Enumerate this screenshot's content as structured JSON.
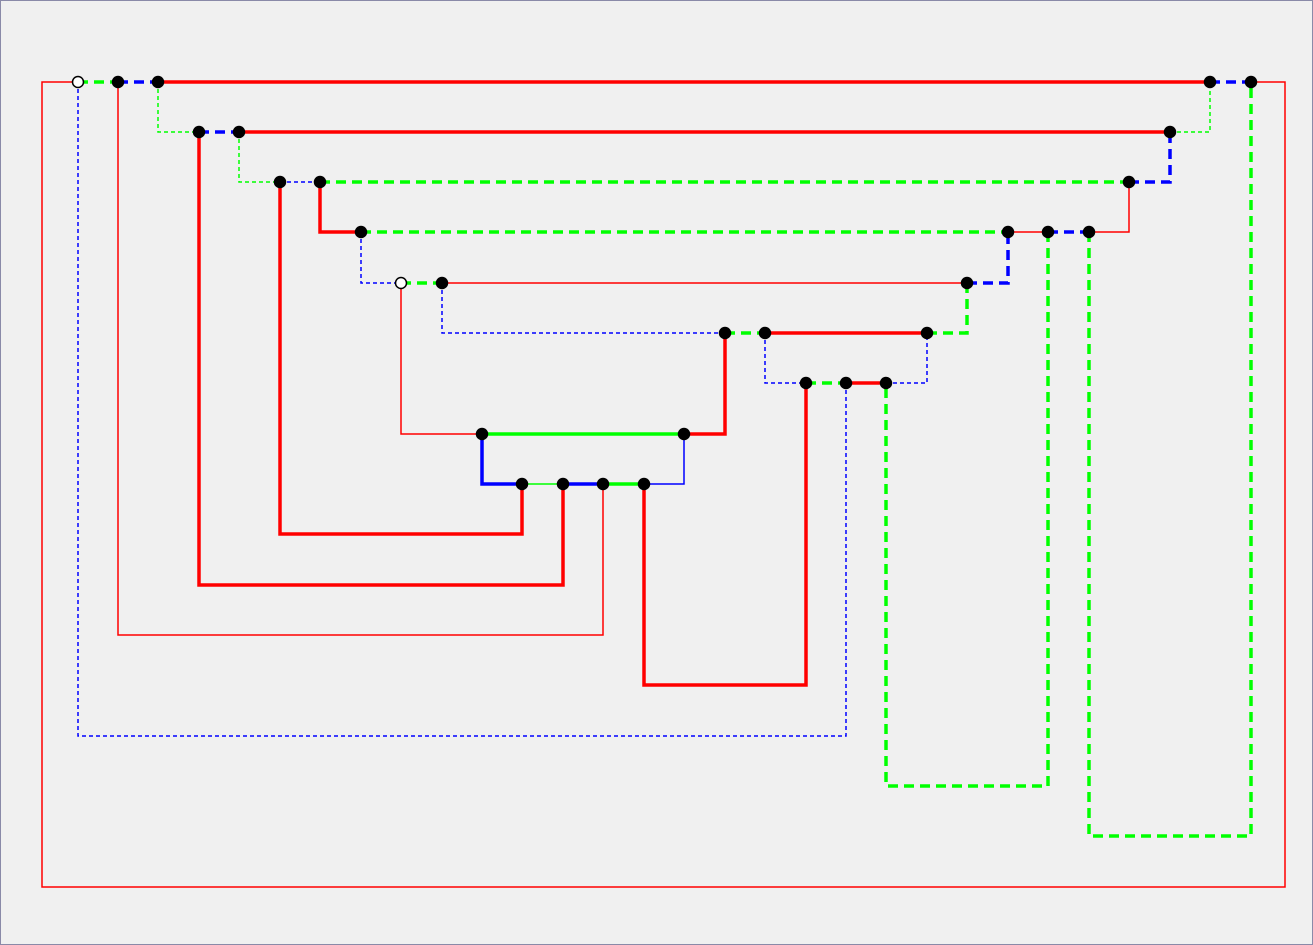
{
  "diagram": {
    "type": "orthogonal-graph",
    "colors": {
      "red": "#ff0000",
      "green": "#00ff00",
      "blue": "#0000ff",
      "node": "#000000",
      "open_node": "#ffffff",
      "background": "#f0f0f0"
    },
    "nodes": [
      {
        "id": "a1",
        "fill": "open"
      },
      {
        "id": "a2",
        "fill": "solid"
      },
      {
        "id": "a3",
        "fill": "solid"
      },
      {
        "id": "a4",
        "fill": "solid"
      },
      {
        "id": "a5",
        "fill": "solid"
      },
      {
        "id": "b1",
        "fill": "solid"
      },
      {
        "id": "b2",
        "fill": "solid"
      },
      {
        "id": "b3",
        "fill": "solid"
      },
      {
        "id": "c1",
        "fill": "solid"
      },
      {
        "id": "c2",
        "fill": "solid"
      },
      {
        "id": "c3",
        "fill": "solid"
      },
      {
        "id": "d1",
        "fill": "solid"
      },
      {
        "id": "d2",
        "fill": "solid"
      },
      {
        "id": "d3",
        "fill": "solid"
      },
      {
        "id": "d4",
        "fill": "solid"
      },
      {
        "id": "e1",
        "fill": "open"
      },
      {
        "id": "e2",
        "fill": "solid"
      },
      {
        "id": "e3",
        "fill": "solid"
      },
      {
        "id": "f1",
        "fill": "solid"
      },
      {
        "id": "f2",
        "fill": "solid"
      },
      {
        "id": "f3",
        "fill": "solid"
      },
      {
        "id": "g1",
        "fill": "solid"
      },
      {
        "id": "g2",
        "fill": "solid"
      },
      {
        "id": "g3",
        "fill": "solid"
      },
      {
        "id": "h1",
        "fill": "solid"
      },
      {
        "id": "h2",
        "fill": "solid"
      },
      {
        "id": "i1",
        "fill": "solid"
      },
      {
        "id": "i2",
        "fill": "solid"
      },
      {
        "id": "i3",
        "fill": "solid"
      },
      {
        "id": "i4",
        "fill": "solid"
      }
    ],
    "edges": [
      {
        "from": "a1",
        "to": "a5",
        "color": "red",
        "weight": "thin",
        "dashed": false
      },
      {
        "from": "a1",
        "to": "a2",
        "color": "green",
        "weight": "thick",
        "dashed": true
      },
      {
        "from": "a2",
        "to": "a3",
        "color": "blue",
        "weight": "thick",
        "dashed": true
      },
      {
        "from": "a3",
        "to": "a4",
        "color": "red",
        "weight": "thick",
        "dashed": false
      },
      {
        "from": "a4",
        "to": "a5",
        "color": "blue",
        "weight": "thick",
        "dashed": true
      },
      {
        "from": "a1",
        "to": "g2",
        "color": "blue",
        "weight": "thin",
        "dashed": true
      },
      {
        "from": "a2",
        "to": "i3",
        "color": "red",
        "weight": "thin",
        "dashed": false
      },
      {
        "from": "a3",
        "to": "b1",
        "color": "green",
        "weight": "thin",
        "dashed": true
      },
      {
        "from": "b1",
        "to": "b2",
        "color": "blue",
        "weight": "thick",
        "dashed": true
      },
      {
        "from": "b2",
        "to": "b3",
        "color": "red",
        "weight": "thick",
        "dashed": false
      },
      {
        "from": "b3",
        "to": "a4",
        "color": "green",
        "weight": "thin",
        "dashed": true
      },
      {
        "from": "b1",
        "to": "i2",
        "color": "red",
        "weight": "thick",
        "dashed": false
      },
      {
        "from": "b2",
        "to": "c1",
        "color": "green",
        "weight": "thin",
        "dashed": true
      },
      {
        "from": "c1",
        "to": "c2",
        "color": "blue",
        "weight": "thin",
        "dashed": true
      },
      {
        "from": "c2",
        "to": "c3",
        "color": "green",
        "weight": "thick",
        "dashed": true
      },
      {
        "from": "c3",
        "to": "b3",
        "color": "blue",
        "weight": "thick",
        "dashed": true
      },
      {
        "from": "c1",
        "to": "i1",
        "color": "red",
        "weight": "thick",
        "dashed": false
      },
      {
        "from": "c2",
        "to": "d1",
        "color": "red",
        "weight": "thick",
        "dashed": false
      },
      {
        "from": "d1",
        "to": "d2",
        "color": "green",
        "weight": "thick",
        "dashed": true
      },
      {
        "from": "d2",
        "to": "d3",
        "color": "red",
        "weight": "thin",
        "dashed": false
      },
      {
        "from": "d3",
        "to": "d4",
        "color": "blue",
        "weight": "thick",
        "dashed": true
      },
      {
        "from": "d4",
        "to": "c3",
        "color": "red",
        "weight": "thin",
        "dashed": false
      },
      {
        "from": "d4",
        "to": "a5",
        "color": "green",
        "weight": "thick",
        "dashed": true
      },
      {
        "from": "d3",
        "to": "g3",
        "color": "green",
        "weight": "thick",
        "dashed": true
      },
      {
        "from": "d1",
        "to": "e1",
        "color": "blue",
        "weight": "thin",
        "dashed": true
      },
      {
        "from": "e1",
        "to": "e2",
        "color": "green",
        "weight": "thick",
        "dashed": true
      },
      {
        "from": "e2",
        "to": "e3",
        "color": "red",
        "weight": "thin",
        "dashed": false
      },
      {
        "from": "e3",
        "to": "d2",
        "color": "blue",
        "weight": "thick",
        "dashed": true
      },
      {
        "from": "e1",
        "to": "h1",
        "color": "red",
        "weight": "thin",
        "dashed": false
      },
      {
        "from": "e2",
        "to": "f1",
        "color": "blue",
        "weight": "thin",
        "dashed": true
      },
      {
        "from": "f1",
        "to": "f2",
        "color": "green",
        "weight": "thick",
        "dashed": true
      },
      {
        "from": "f2",
        "to": "f3",
        "color": "red",
        "weight": "thick",
        "dashed": false
      },
      {
        "from": "f3",
        "to": "e3",
        "color": "green",
        "weight": "thick",
        "dashed": true
      },
      {
        "from": "f1",
        "to": "h2",
        "color": "red",
        "weight": "thick",
        "dashed": false
      },
      {
        "from": "h1",
        "to": "h2",
        "color": "green",
        "weight": "thick",
        "dashed": false
      },
      {
        "from": "h2",
        "to": "i4",
        "color": "blue",
        "weight": "thin",
        "dashed": false
      },
      {
        "from": "h1",
        "to": "i1",
        "color": "blue",
        "weight": "thick",
        "dashed": false
      },
      {
        "from": "i1",
        "to": "i2",
        "color": "green",
        "weight": "thin",
        "dashed": false
      },
      {
        "from": "i2",
        "to": "i3",
        "color": "blue",
        "weight": "thick",
        "dashed": false
      },
      {
        "from": "i3",
        "to": "i4",
        "color": "green",
        "weight": "thick",
        "dashed": false
      },
      {
        "from": "i4",
        "to": "g1",
        "color": "red",
        "weight": "thick",
        "dashed": false
      },
      {
        "from": "f2",
        "to": "g1",
        "color": "blue",
        "weight": "thin",
        "dashed": true
      },
      {
        "from": "g1",
        "to": "g2",
        "color": "green",
        "weight": "thick",
        "dashed": true
      },
      {
        "from": "g2",
        "to": "g3",
        "color": "red",
        "weight": "thick",
        "dashed": false
      },
      {
        "from": "g3",
        "to": "f3",
        "color": "blue",
        "weight": "thin",
        "dashed": true
      }
    ]
  }
}
